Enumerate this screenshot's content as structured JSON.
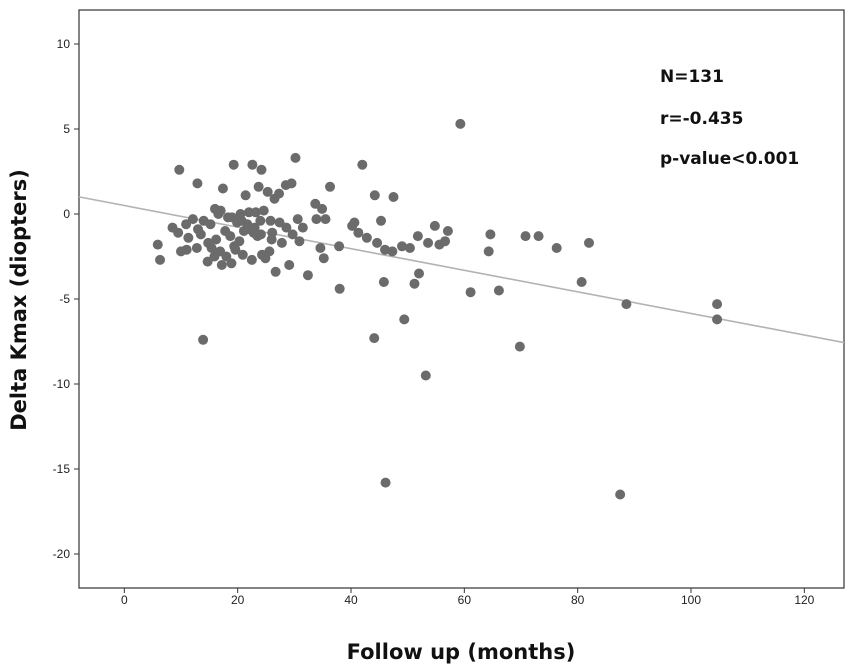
{
  "chart_data": {
    "type": "scatter",
    "title": "",
    "xlabel": "Follow up (months)",
    "ylabel": "Delta Kmax (diopters)",
    "xlim": [
      -8,
      127
    ],
    "ylim": [
      -22,
      12
    ],
    "xticks": [
      0,
      20,
      40,
      60,
      80,
      100,
      120
    ],
    "yticks": [
      10,
      5,
      0,
      -5,
      -10,
      -15,
      -20
    ],
    "grid": false,
    "legend": "none",
    "colors": {
      "points": "#6b6b6b",
      "fit_line": "#b3b3b3",
      "frame": "#333333"
    },
    "fit_line": {
      "slope": -0.0635,
      "intercept": 0.5
    },
    "annotations": [
      "N=131",
      "r=-0.435",
      "p-value<0.001"
    ],
    "series": [
      {
        "x": [
          59.3,
          30.2,
          19.3,
          22.6,
          24.2,
          9.7,
          12.9,
          28.5,
          17.4,
          27.3,
          42.0,
          29.5,
          36.3,
          44.2,
          33.7,
          47.5,
          40.6,
          45.3,
          34.9,
          35.5,
          23.7,
          25.3,
          21.4,
          26.5,
          17.0,
          5.9,
          6.3,
          10.9,
          8.5,
          12.1,
          14.0,
          15.2,
          16.6,
          18.3,
          19.9,
          20.7,
          21.8,
          22.2,
          23.0,
          24.6,
          25.8,
          27.4,
          28.6,
          30.6,
          31.5,
          9.5,
          11.3,
          13.5,
          14.8,
          15.4,
          16.2,
          17.8,
          18.7,
          19.4,
          20.3,
          21.1,
          22.8,
          23.5,
          24.1,
          26.0,
          27.8,
          29.7,
          16.9,
          18.0,
          19.6,
          20.9,
          22.5,
          24.9,
          26.7,
          29.1,
          30.9,
          32.4,
          11.0,
          12.8,
          15.9,
          18.9,
          25.6,
          34.6,
          37.9,
          40.2,
          41.3,
          42.8,
          44.6,
          46.0,
          47.3,
          49.0,
          50.4,
          51.8,
          53.6,
          54.8,
          55.6,
          56.6,
          57.1,
          64.6,
          64.3,
          70.8,
          73.1,
          76.3,
          82.0,
          45.8,
          51.2,
          52.0,
          61.1,
          66.1,
          80.7,
          88.6,
          104.6,
          104.6,
          13.9,
          44.1,
          49.4,
          53.2,
          69.8,
          46.1,
          87.5,
          35.2,
          33.9,
          38.0,
          17.2,
          14.7,
          24.3,
          26.1,
          21.7,
          19.0,
          22.0,
          24.0,
          16.0,
          13.0,
          10.0,
          20.5,
          23.2
        ],
        "y": [
          5.3,
          3.3,
          2.9,
          2.9,
          2.6,
          2.6,
          1.8,
          1.7,
          1.5,
          1.2,
          2.9,
          1.8,
          1.6,
          1.1,
          0.6,
          1.0,
          -0.5,
          -0.4,
          0.3,
          -0.3,
          1.6,
          1.3,
          1.1,
          0.9,
          0.2,
          -1.8,
          -2.7,
          -0.6,
          -0.8,
          -0.3,
          -0.4,
          -0.6,
          0.0,
          -0.2,
          -0.5,
          -0.4,
          -0.7,
          -0.9,
          -0.8,
          0.2,
          -0.4,
          -0.5,
          -0.8,
          -0.3,
          -0.8,
          -1.1,
          -1.4,
          -1.2,
          -1.7,
          -2.0,
          -1.5,
          -1.0,
          -1.3,
          -1.9,
          -1.6,
          -1.0,
          -1.1,
          -1.3,
          -1.2,
          -1.5,
          -1.7,
          -1.2,
          -2.2,
          -2.5,
          -2.1,
          -2.4,
          -2.7,
          -2.6,
          -3.4,
          -3.0,
          -1.6,
          -3.6,
          -2.1,
          -2.0,
          -2.5,
          -2.9,
          -2.2,
          -2.0,
          -1.9,
          -0.7,
          -1.1,
          -1.4,
          -1.7,
          -2.1,
          -2.2,
          -1.9,
          -2.0,
          -1.3,
          -1.7,
          -0.7,
          -1.8,
          -1.6,
          -1.0,
          -1.2,
          -2.2,
          -1.3,
          -1.3,
          -2.0,
          -1.7,
          -4.0,
          -4.1,
          -3.5,
          -4.6,
          -4.5,
          -4.0,
          -5.3,
          -5.3,
          -6.2,
          -7.4,
          -7.3,
          -6.2,
          -9.5,
          -7.8,
          -15.8,
          -16.5,
          -2.6,
          -0.3,
          -4.4,
          -3.0,
          -2.8,
          -2.4,
          -1.1,
          -0.6,
          -0.2,
          0.1,
          -0.4,
          0.3,
          -0.9,
          -2.2,
          0.0,
          0.1
        ]
      }
    ]
  }
}
